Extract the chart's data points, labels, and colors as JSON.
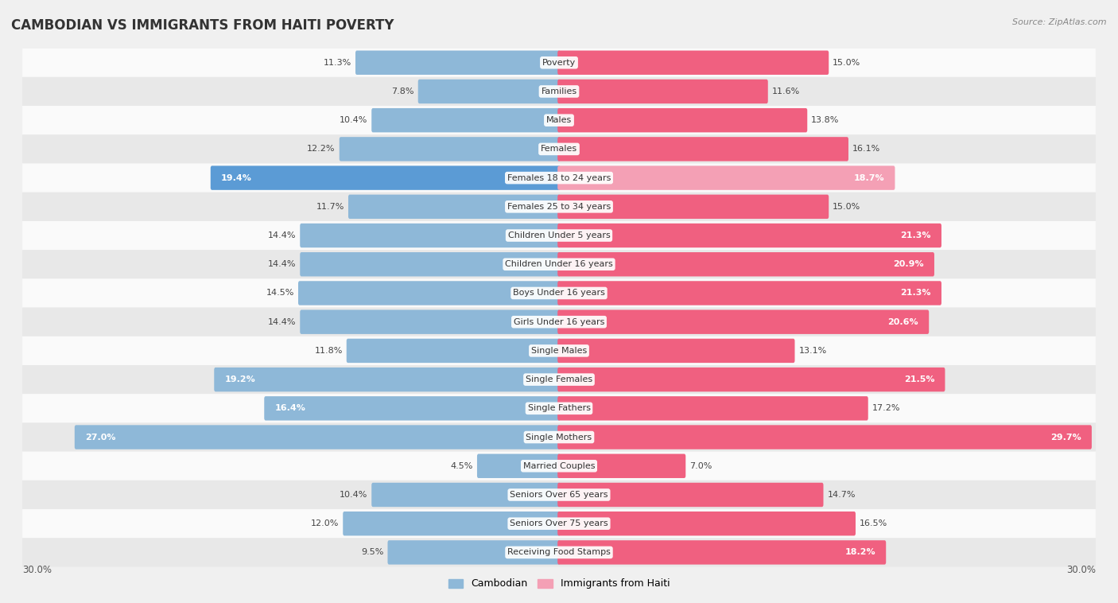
{
  "title": "CAMBODIAN VS IMMIGRANTS FROM HAITI POVERTY",
  "source": "Source: ZipAtlas.com",
  "categories": [
    "Poverty",
    "Families",
    "Males",
    "Females",
    "Females 18 to 24 years",
    "Females 25 to 34 years",
    "Children Under 5 years",
    "Children Under 16 years",
    "Boys Under 16 years",
    "Girls Under 16 years",
    "Single Males",
    "Single Females",
    "Single Fathers",
    "Single Mothers",
    "Married Couples",
    "Seniors Over 65 years",
    "Seniors Over 75 years",
    "Receiving Food Stamps"
  ],
  "cambodian": [
    11.3,
    7.8,
    10.4,
    12.2,
    19.4,
    11.7,
    14.4,
    14.4,
    14.5,
    14.4,
    11.8,
    19.2,
    16.4,
    27.0,
    4.5,
    10.4,
    12.0,
    9.5
  ],
  "haiti": [
    15.0,
    11.6,
    13.8,
    16.1,
    18.7,
    15.0,
    21.3,
    20.9,
    21.3,
    20.6,
    13.1,
    21.5,
    17.2,
    29.7,
    7.0,
    14.7,
    16.5,
    18.2
  ],
  "max_val": 30.0,
  "cambodian_color": "#8eb8d8",
  "haiti_color": "#f4a0b5",
  "cambodian_highlight_color": "#5b9bd5",
  "haiti_highlight_color": "#f06080",
  "background_color": "#f0f0f0",
  "row_bg_light": "#fafafa",
  "row_bg_dark": "#e8e8e8",
  "title_fontsize": 12,
  "label_fontsize": 8,
  "value_fontsize": 8,
  "legend_fontsize": 9
}
